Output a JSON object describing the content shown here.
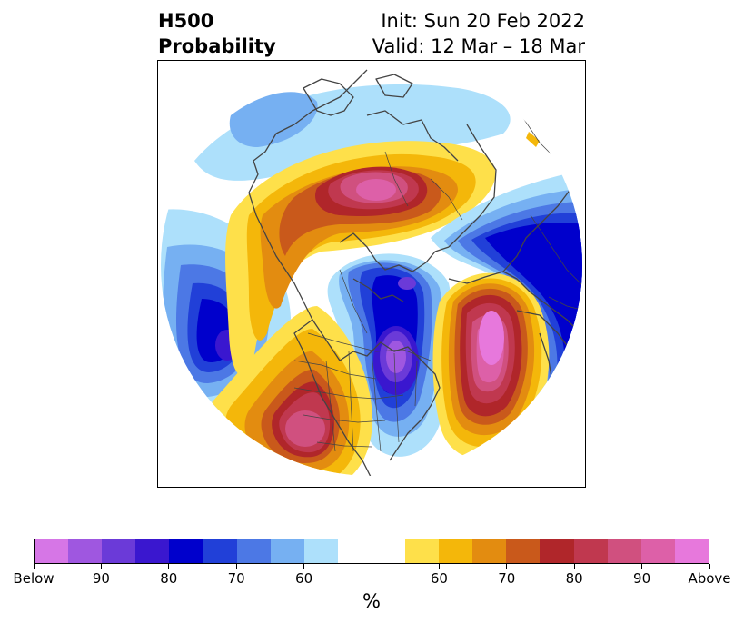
{
  "title": {
    "left": "H500\nProbability",
    "right": "Init: Sun 20 Feb 2022\nValid: 12 Mar – 18 Mar"
  },
  "colorbar": {
    "colors": [
      "#d676e6",
      "#9f57e0",
      "#6b3ad8",
      "#3a17cf",
      "#0000cc",
      "#2140d8",
      "#4c78e5",
      "#76b0f2",
      "#ade0fb",
      "#ffffff",
      "#ffffff",
      "#fee04a",
      "#f4b70a",
      "#e38c10",
      "#c9591b",
      "#b0262a",
      "#c0384f",
      "#d0507f",
      "#dd60a8",
      "#e778dc"
    ],
    "ticks": [
      {
        "label": "Below"
      },
      {
        "label": "90"
      },
      {
        "label": "80"
      },
      {
        "label": "70"
      },
      {
        "label": "60"
      },
      {
        "label": ""
      },
      {
        "label": "60"
      },
      {
        "label": "70"
      },
      {
        "label": "80"
      },
      {
        "label": "90"
      },
      {
        "label": "Above"
      }
    ],
    "unit": "%"
  },
  "map": {
    "projection": "polar-stereographic",
    "region": "North America / North Atlantic",
    "anomalies": [
      {
        "sign": "below",
        "peak": "Below",
        "region": "eastern North Pacific"
      },
      {
        "sign": "below",
        "peak": "Below",
        "region": "Great Lakes / eastern United States"
      },
      {
        "sign": "below",
        "peak": "80",
        "region": "Hudson Bay / Labrador"
      },
      {
        "sign": "below",
        "peak": "80",
        "region": "Greenland / North Atlantic"
      },
      {
        "sign": "above",
        "peak": "90",
        "region": "northern Canada"
      },
      {
        "sign": "above",
        "peak": "Above",
        "region": "western Atlantic"
      },
      {
        "sign": "above",
        "peak": "90",
        "region": "southwestern United States"
      }
    ]
  }
}
